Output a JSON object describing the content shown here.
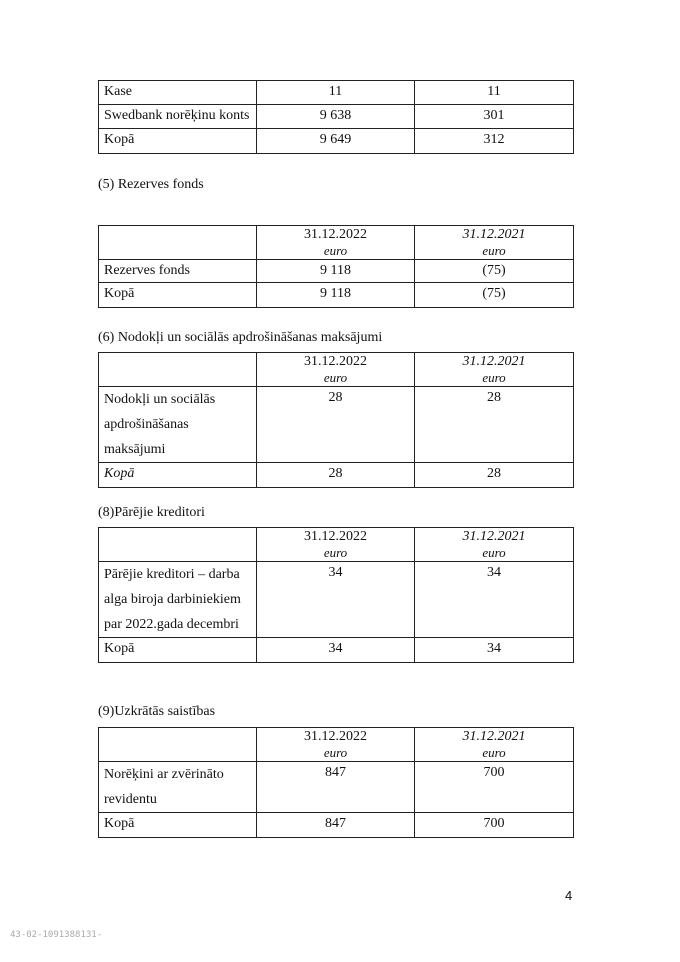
{
  "tables": [
    {
      "rows": [
        [
          "Kase",
          "11",
          "11"
        ],
        [
          "Swedbank norēķinu konts",
          "9 638",
          "301"
        ],
        [
          "Kopā",
          "9 649",
          "312"
        ]
      ]
    },
    {
      "heading": "(5) Rezerves fonds",
      "header": [
        "",
        "31.12.2022",
        "31.12.2021"
      ],
      "unit": "euro",
      "rows": [
        [
          "Rezerves fonds",
          "9 118",
          "(75)"
        ],
        [
          "Kopā",
          "9 118",
          "(75)"
        ]
      ]
    },
    {
      "heading": "(6) Nodokļi un sociālās apdrošināšanas maksājumi",
      "header": [
        "",
        "31.12.2022",
        "31.12.2021"
      ],
      "unit": "euro",
      "rows": [
        [
          "Nodokļi un sociālās apdrošināšanas maksājumi",
          "28",
          "28"
        ],
        [
          "Kopā",
          "28",
          "28"
        ]
      ],
      "italic_total": true
    },
    {
      "heading": "(8)Pārējie kreditori",
      "header": [
        "",
        "31.12.2022",
        "31.12.2021"
      ],
      "unit": "euro",
      "rows": [
        [
          "Pārējie kreditori – darba alga biroja darbiniekiem par 2022.gada decembri",
          "34",
          "34"
        ],
        [
          "Kopā",
          "34",
          "34"
        ]
      ]
    },
    {
      "heading": "(9)Uzkrātās saistības",
      "header": [
        "",
        "31.12.2022",
        "31.12.2021"
      ],
      "unit": "euro",
      "rows": [
        [
          "Norēķini ar zvērināto revidentu",
          "847",
          "700"
        ],
        [
          "Kopā",
          "847",
          "700"
        ]
      ]
    }
  ],
  "page_number": "4",
  "stamp": "43-02-1091388131-"
}
